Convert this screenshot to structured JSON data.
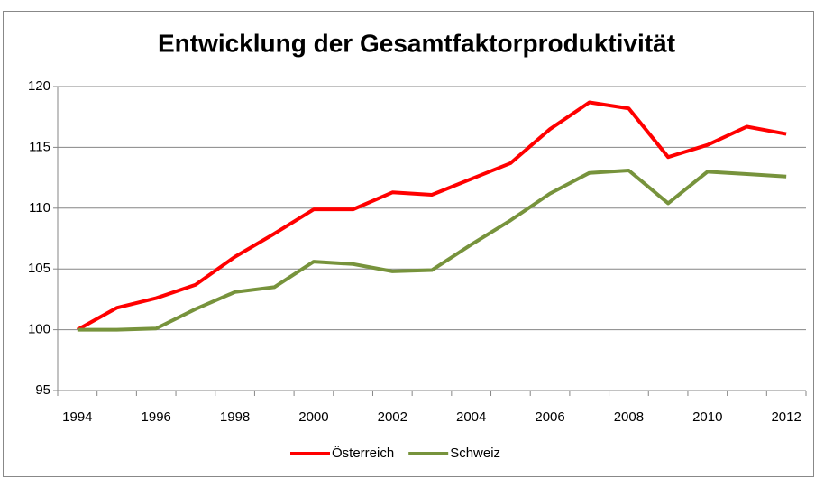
{
  "chart_data": {
    "type": "line",
    "title": "Entwicklung der Gesamtfaktorproduktivität",
    "categories": [
      "1994",
      null,
      "1996",
      null,
      "1998",
      null,
      "2000",
      null,
      "2002",
      null,
      "2004",
      null,
      "2006",
      null,
      "2008",
      null,
      "2010",
      null,
      "2012"
    ],
    "series": [
      {
        "name": "Österreich",
        "color": "#ff0000",
        "values": [
          100,
          101.8,
          102.6,
          103.7,
          106.0,
          107.9,
          109.9,
          109.9,
          111.3,
          111.1,
          112.4,
          113.7,
          116.5,
          118.7,
          118.2,
          114.2,
          115.2,
          116.7,
          116.1
        ]
      },
      {
        "name": "Schweiz",
        "color": "#77933c",
        "values": [
          100,
          100,
          100.1,
          101.7,
          103.1,
          103.5,
          105.6,
          105.4,
          104.8,
          104.9,
          107.0,
          109.0,
          111.2,
          112.9,
          113.1,
          110.4,
          113.0,
          112.8,
          112.6
        ]
      }
    ],
    "ylim": [
      95,
      120
    ],
    "yticks": [
      95,
      100,
      105,
      110,
      115,
      120
    ],
    "grid": true,
    "legend": "bottom"
  }
}
